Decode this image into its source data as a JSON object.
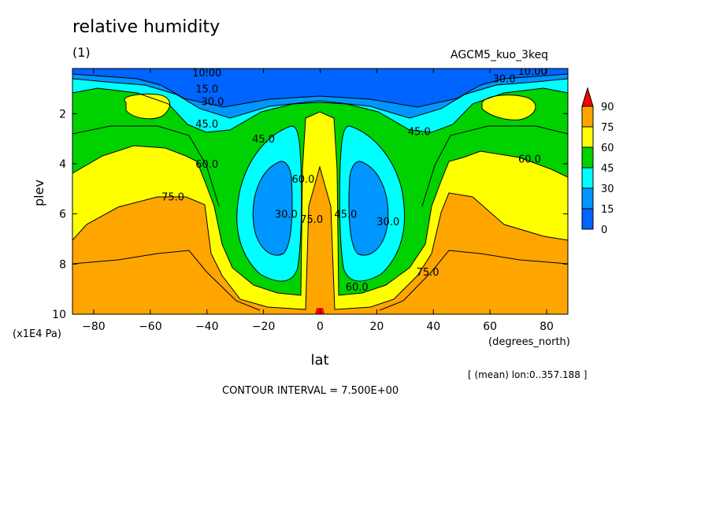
{
  "figure": {
    "title": "relative humidity",
    "subtitle": "(1)",
    "run_label": "AGCM5_kuo_3keq",
    "mean_note": "[ (mean) lon:0..357.188 ]",
    "contour_interval": "CONTOUR INTERVAL = 7.500E+00"
  },
  "chart_data": {
    "type": "heatmap",
    "variable": "relative humidity",
    "xlabel": "lat",
    "xunit": "(degrees_north)",
    "ylabel": "plev",
    "yunit": "(x1E4 Pa)",
    "xlim": [
      -87.5,
      87.5
    ],
    "ylim": [
      10,
      0.2
    ],
    "y_inverted": true,
    "xticks": [
      -80,
      -60,
      -40,
      -20,
      0,
      20,
      40,
      60,
      80
    ],
    "xtick_labels": [
      "−80",
      "−60",
      "−40",
      "−20",
      "0",
      "20",
      "40",
      "60",
      "80"
    ],
    "yticks": [
      2,
      4,
      6,
      8,
      10
    ],
    "ytick_labels": [
      "2",
      "4",
      "6",
      "8",
      "10"
    ],
    "contour_interval": 7.5,
    "color_levels": [
      0,
      15,
      30,
      45,
      60,
      75,
      90
    ],
    "colorbar": {
      "labels": [
        "90",
        "75",
        "60",
        "45",
        "30",
        "15",
        "0"
      ],
      "colors": [
        "#ff0000",
        "#ffa500",
        "#ffff00",
        "#00d200",
        "#00ffff",
        "#0096ff",
        "#0064ff"
      ]
    },
    "contour_labels": [
      {
        "text": "10.00",
        "lat": -40,
        "plev": 0.35
      },
      {
        "text": "15.0",
        "lat": -40,
        "plev": 1.0
      },
      {
        "text": "30.0",
        "lat": -38,
        "plev": 1.5
      },
      {
        "text": "45.0",
        "lat": -40,
        "plev": 2.4
      },
      {
        "text": "60.0",
        "lat": -40,
        "plev": 4.0
      },
      {
        "text": "75.0",
        "lat": -52,
        "plev": 5.3
      },
      {
        "text": "45.0",
        "lat": -20,
        "plev": 3.0
      },
      {
        "text": "30.0",
        "lat": -12,
        "plev": 6.0
      },
      {
        "text": "60.0",
        "lat": -6,
        "plev": 4.6
      },
      {
        "text": "75.0",
        "lat": -3,
        "plev": 6.2
      },
      {
        "text": "45.0",
        "lat": 9,
        "plev": 6.0
      },
      {
        "text": "30.0",
        "lat": 24,
        "plev": 6.3
      },
      {
        "text": "60.0",
        "lat": 13,
        "plev": 8.9
      },
      {
        "text": "75.0",
        "lat": 38,
        "plev": 8.3
      },
      {
        "text": "45.0",
        "lat": 35,
        "plev": 2.7
      },
      {
        "text": "60.0",
        "lat": 74,
        "plev": 3.8
      },
      {
        "text": "30.0",
        "lat": 65,
        "plev": 0.6
      },
      {
        "text": "10.00",
        "lat": 75,
        "plev": 0.3
      }
    ]
  }
}
